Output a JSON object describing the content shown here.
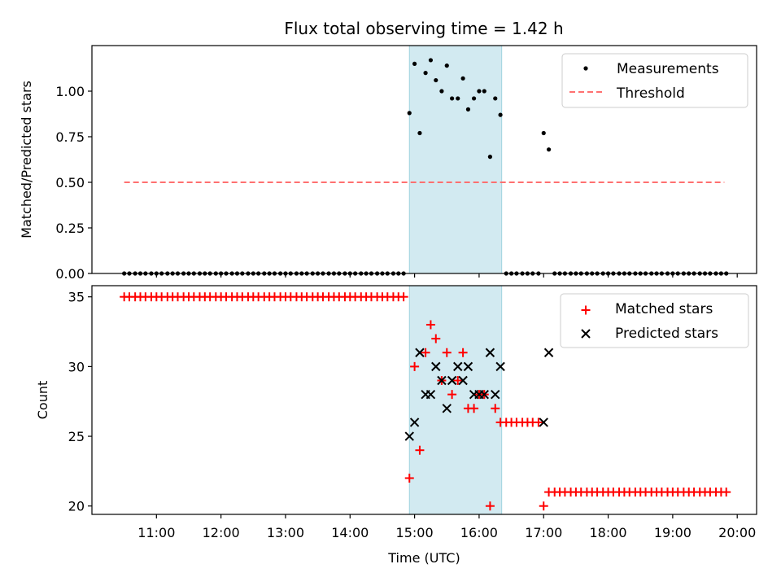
{
  "figure": {
    "title": "Flux total observing time = 1.42 h",
    "colors": {
      "shade": "#add8e6",
      "threshold": "#ff7070",
      "matched": "#ff0000",
      "predicted": "#000000",
      "measure": "#000000"
    }
  },
  "chart_data": [
    {
      "type": "scatter",
      "panel": "top",
      "title": "Flux total observing time = 1.42 h",
      "xlabel": "",
      "ylabel": "Matched/Predicted stars",
      "x_units": "hours UTC",
      "xlim": [
        10.0,
        20.3
      ],
      "ylim": [
        0.0,
        1.25
      ],
      "yticks": [
        0.0,
        0.25,
        0.5,
        0.75,
        1.0
      ],
      "ytick_labels": [
        "0.00",
        "0.25",
        "0.50",
        "0.75",
        "1.00"
      ],
      "shaded_span": [
        14.92,
        16.35
      ],
      "legend_position": "top-right",
      "legend": [
        "Measurements",
        "Threshold"
      ],
      "threshold": {
        "name": "Threshold",
        "value": 0.5,
        "x_range": [
          10.5,
          19.8
        ],
        "style": "dashed"
      },
      "series": [
        {
          "name": "Measurements",
          "x": [
            10.5,
            10.58,
            10.67,
            10.75,
            10.83,
            10.92,
            11.0,
            11.08,
            11.17,
            11.25,
            11.33,
            11.42,
            11.5,
            11.58,
            11.67,
            11.75,
            11.83,
            11.92,
            12.0,
            12.08,
            12.17,
            12.25,
            12.33,
            12.42,
            12.5,
            12.58,
            12.67,
            12.75,
            12.83,
            12.92,
            13.0,
            13.08,
            13.17,
            13.25,
            13.33,
            13.42,
            13.5,
            13.58,
            13.67,
            13.75,
            13.83,
            13.92,
            14.0,
            14.08,
            14.17,
            14.25,
            14.33,
            14.42,
            14.5,
            14.58,
            14.67,
            14.75,
            14.83,
            14.92,
            15.0,
            15.08,
            15.17,
            15.25,
            15.33,
            15.42,
            15.5,
            15.58,
            15.67,
            15.75,
            15.83,
            15.92,
            16.0,
            16.08,
            16.17,
            16.25,
            16.33,
            16.42,
            16.5,
            16.58,
            16.67,
            16.75,
            16.83,
            16.92,
            17.0,
            17.08,
            17.17,
            17.25,
            17.33,
            17.42,
            17.5,
            17.58,
            17.67,
            17.75,
            17.83,
            17.92,
            18.0,
            18.08,
            18.17,
            18.25,
            18.33,
            18.42,
            18.5,
            18.58,
            18.67,
            18.75,
            18.83,
            18.92,
            19.0,
            19.08,
            19.17,
            19.25,
            19.33,
            19.42,
            19.5,
            19.58,
            19.67,
            19.75,
            19.83
          ],
          "y": [
            0,
            0,
            0,
            0,
            0,
            0,
            0,
            0,
            0,
            0,
            0,
            0,
            0,
            0,
            0,
            0,
            0,
            0,
            0,
            0,
            0,
            0,
            0,
            0,
            0,
            0,
            0,
            0,
            0,
            0,
            0,
            0,
            0,
            0,
            0,
            0,
            0,
            0,
            0,
            0,
            0,
            0,
            0,
            0,
            0,
            0,
            0,
            0,
            0,
            0,
            0,
            0,
            0,
            0.88,
            1.15,
            0.77,
            1.1,
            1.17,
            1.06,
            1.0,
            1.14,
            0.96,
            0.96,
            1.07,
            0.9,
            0.96,
            1.0,
            1.0,
            0.64,
            0.96,
            0.87,
            0,
            0,
            0,
            0,
            0,
            0,
            0,
            0.77,
            0.68,
            0,
            0,
            0,
            0,
            0,
            0,
            0,
            0,
            0,
            0,
            0,
            0,
            0,
            0,
            0,
            0,
            0,
            0,
            0,
            0,
            0,
            0,
            0,
            0,
            0,
            0,
            0,
            0,
            0,
            0,
            0,
            0,
            0
          ]
        }
      ]
    },
    {
      "type": "scatter",
      "panel": "bottom",
      "title": "",
      "xlabel": "Time (UTC)",
      "ylabel": "Count",
      "x_units": "hours UTC",
      "xlim": [
        10.0,
        20.3
      ],
      "ylim": [
        19.4,
        35.8
      ],
      "yticks": [
        20,
        25,
        30,
        35
      ],
      "ytick_labels": [
        "20",
        "25",
        "30",
        "35"
      ],
      "xticks": [
        11,
        12,
        13,
        14,
        15,
        16,
        17,
        18,
        19,
        20
      ],
      "xtick_labels": [
        "11:00",
        "12:00",
        "13:00",
        "14:00",
        "15:00",
        "16:00",
        "17:00",
        "18:00",
        "19:00",
        "20:00"
      ],
      "shaded_span": [
        14.92,
        16.35
      ],
      "legend_position": "top-right",
      "legend": [
        "Matched stars",
        "Predicted stars"
      ],
      "series": [
        {
          "name": "Matched stars",
          "marker": "+",
          "x": [
            10.5,
            10.58,
            10.67,
            10.75,
            10.83,
            10.92,
            11.0,
            11.08,
            11.17,
            11.25,
            11.33,
            11.42,
            11.5,
            11.58,
            11.67,
            11.75,
            11.83,
            11.92,
            12.0,
            12.08,
            12.17,
            12.25,
            12.33,
            12.42,
            12.5,
            12.58,
            12.67,
            12.75,
            12.83,
            12.92,
            13.0,
            13.08,
            13.17,
            13.25,
            13.33,
            13.42,
            13.5,
            13.58,
            13.67,
            13.75,
            13.83,
            13.92,
            14.0,
            14.08,
            14.17,
            14.25,
            14.33,
            14.42,
            14.5,
            14.58,
            14.67,
            14.75,
            14.83,
            14.92,
            15.0,
            15.08,
            15.17,
            15.25,
            15.33,
            15.42,
            15.5,
            15.58,
            15.67,
            15.75,
            15.83,
            15.92,
            16.0,
            16.08,
            16.17,
            16.25,
            16.33,
            16.42,
            16.5,
            16.58,
            16.67,
            16.75,
            16.83,
            16.92,
            17.0,
            17.08,
            17.17,
            17.25,
            17.33,
            17.42,
            17.5,
            17.58,
            17.67,
            17.75,
            17.83,
            17.92,
            18.0,
            18.08,
            18.17,
            18.25,
            18.33,
            18.42,
            18.5,
            18.58,
            18.67,
            18.75,
            18.83,
            18.92,
            19.0,
            19.08,
            19.17,
            19.25,
            19.33,
            19.42,
            19.5,
            19.58,
            19.67,
            19.75,
            19.83
          ],
          "y": [
            35,
            35,
            35,
            35,
            35,
            35,
            35,
            35,
            35,
            35,
            35,
            35,
            35,
            35,
            35,
            35,
            35,
            35,
            35,
            35,
            35,
            35,
            35,
            35,
            35,
            35,
            35,
            35,
            35,
            35,
            35,
            35,
            35,
            35,
            35,
            35,
            35,
            35,
            35,
            35,
            35,
            35,
            35,
            35,
            35,
            35,
            35,
            35,
            35,
            35,
            35,
            35,
            35,
            22,
            30,
            24,
            31,
            33,
            32,
            29,
            31,
            28,
            29,
            31,
            27,
            27,
            28,
            28,
            20,
            27,
            26,
            26,
            26,
            26,
            26,
            26,
            26,
            26,
            20,
            21,
            21,
            21,
            21,
            21,
            21,
            21,
            21,
            21,
            21,
            21,
            21,
            21,
            21,
            21,
            21,
            21,
            21,
            21,
            21,
            21,
            21,
            21,
            21,
            21,
            21,
            21,
            21,
            21,
            21,
            21,
            21,
            21,
            21
          ]
        },
        {
          "name": "Predicted stars",
          "marker": "x",
          "x": [
            14.92,
            15.0,
            15.08,
            15.17,
            15.25,
            15.33,
            15.42,
            15.5,
            15.58,
            15.67,
            15.75,
            15.83,
            15.92,
            16.0,
            16.08,
            16.17,
            16.25,
            16.33,
            17.0,
            17.08
          ],
          "y": [
            25,
            26,
            31,
            28,
            28,
            30,
            29,
            27,
            29,
            30,
            29,
            30,
            28,
            28,
            28,
            31,
            28,
            30,
            26,
            31
          ]
        }
      ]
    }
  ]
}
